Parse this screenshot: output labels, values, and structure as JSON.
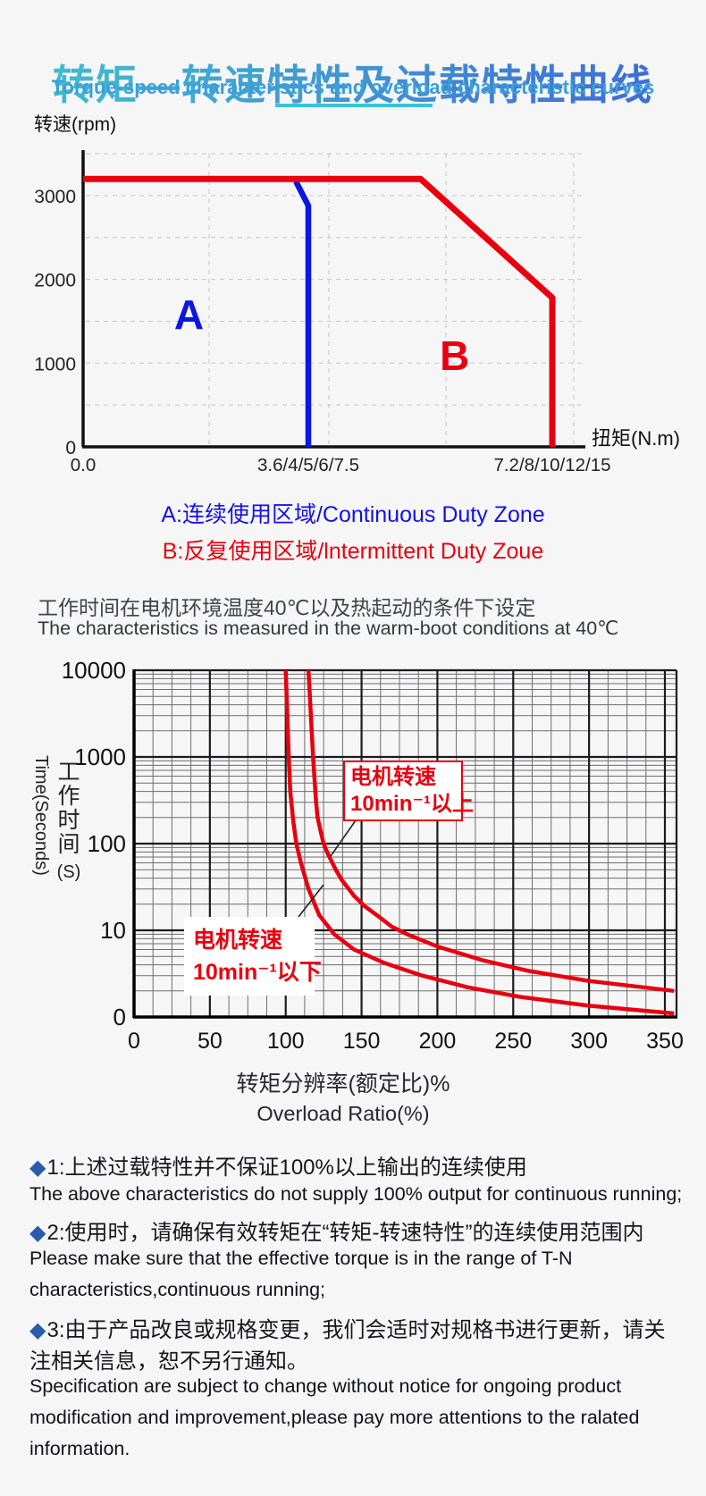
{
  "page": {
    "background": "#f6f6f7",
    "accent_red": "#e8000f",
    "accent_blue": "#0b16e0",
    "bullet_blue": "#2a5da9",
    "title_gradient": [
      "#41c3cd",
      "#3f66d6"
    ],
    "subtitle_color": "#3b9fd9",
    "underline_color": "#3cc3d6"
  },
  "header": {
    "title_cn": "转矩—转速特性及过载特性曲线",
    "title_en": "Torque-speed characteristics and overload characteristic curves"
  },
  "legend": {
    "a": "A:连续使用区域/Continuous Duty Zone",
    "b": "B:反复使用区域/lntermittent Duty Zoue"
  },
  "section_note": {
    "cn": "工作时间在电机环境温度40℃以及热起动的条件下设定",
    "en": "The characteristics is measured in the warm-boot conditions at 40℃"
  },
  "chart_data": [
    {
      "id": "torque-speed",
      "type": "line",
      "title": "",
      "xlabel": "扭矩(N.m)",
      "ylabel": "转速(rpm)",
      "x_ticks": [
        "0.0",
        "3.6/4/5/6/7.5",
        "7.2/8/10/12/15"
      ],
      "x_unit_note": "x expressed in multiples of rated torque; second tick = rated torque, third tick = 2x rated",
      "y_ticks": [
        0,
        1000,
        2000,
        3000
      ],
      "ylim": [
        0,
        3550
      ],
      "grid": "dashed",
      "zone_labels": [
        {
          "text": "A",
          "x": 0.47,
          "rpm": 1580,
          "color": "#0b16e0"
        },
        {
          "text": "B",
          "x": 1.6,
          "rpm": 1090,
          "color": "#e8000f"
        }
      ],
      "series": [
        {
          "name": "连续使用区域边界 Continuous duty boundary",
          "color": "#0b16e0",
          "width": 6.5,
          "points": [
            [
              0.945,
              3170
            ],
            [
              1.0,
              2880
            ],
            [
              1.0,
              0
            ]
          ]
        },
        {
          "name": "反复使用区域边界 Intermittent duty boundary",
          "color": "#e8000f",
          "width": 7,
          "points": [
            [
              0,
              3200
            ],
            [
              1.46,
              3200
            ],
            [
              2.0,
              1780
            ],
            [
              2.0,
              0
            ]
          ]
        }
      ]
    },
    {
      "id": "overload",
      "type": "line",
      "title": "",
      "xlabel_cn": "转矩分辨率(额定比)%",
      "xlabel_en": "Overload Ratio(%)",
      "ylabel_cn": "工作时间",
      "ylabel_cn_unit": "(S)",
      "ylabel_en": "Time(Seconds)",
      "x_ticks": [
        0,
        50,
        100,
        150,
        200,
        250,
        300,
        350
      ],
      "xlim": [
        0,
        357
      ],
      "y_scale": "log",
      "y_ticks": [
        10000,
        1000,
        100,
        10,
        0
      ],
      "series": [
        {
          "name": "电机转速10min⁻¹以上",
          "color": "#e8000f",
          "width": 4.5,
          "points": [
            [
              115,
              10000
            ],
            [
              118,
              1000
            ],
            [
              120,
              300
            ],
            [
              121,
              200
            ],
            [
              123,
              140
            ],
            [
              125,
              100
            ],
            [
              128,
              75
            ],
            [
              133,
              50
            ],
            [
              137,
              38
            ],
            [
              145,
              25
            ],
            [
              152,
              19
            ],
            [
              160,
              15
            ],
            [
              170,
              11
            ],
            [
              180,
              9
            ],
            [
              200,
              6.5
            ],
            [
              230,
              4.5
            ],
            [
              260,
              3.4
            ],
            [
              300,
              2.6
            ],
            [
              356,
              2.0
            ]
          ]
        },
        {
          "name": "电机转速10min⁻¹以下",
          "color": "#e8000f",
          "width": 4.5,
          "points": [
            [
              100,
              10000
            ],
            [
              102,
              1000
            ],
            [
              103,
              400
            ],
            [
              105,
              180
            ],
            [
              107,
              100
            ],
            [
              110,
              60
            ],
            [
              115,
              30
            ],
            [
              122,
              15
            ],
            [
              132,
              9
            ],
            [
              145,
              6
            ],
            [
              165,
              4.2
            ],
            [
              190,
              3.0
            ],
            [
              220,
              2.2
            ],
            [
              255,
              1.7
            ],
            [
              300,
              1.35
            ],
            [
              356,
              1.1
            ]
          ]
        }
      ],
      "callouts": [
        {
          "id": "high-speed",
          "line1": "电机转速",
          "line2": "10min⁻¹以上"
        },
        {
          "id": "low-speed",
          "line1": "电机转速",
          "line2": "10min⁻¹以下"
        }
      ]
    }
  ],
  "notes": [
    {
      "lang": "cn",
      "bullet": "◆",
      "text": "1:上述过载特性并不保证100%以上输出的连续使用"
    },
    {
      "lang": "en",
      "bullet": "",
      "text": "The above characteristics do not supply 100% output for continuous running;"
    },
    {
      "lang": "cn",
      "bullet": "◆",
      "text": "2:使用时，请确保有效转矩在“转矩-转速特性”的连续使用范围内"
    },
    {
      "lang": "en",
      "bullet": "",
      "text": "Please make sure that the effective torque is in the range of T-N"
    },
    {
      "lang": "en",
      "bullet": "",
      "text": "characteristics,continuous running;"
    },
    {
      "lang": "cn",
      "bullet": "◆",
      "text": "3:由于产品改良或规格变更，我们会适时对规格书进行更新，请关"
    },
    {
      "lang": "cn",
      "bullet": "",
      "text": "注相关信息，恕不另行通知。"
    },
    {
      "lang": "en",
      "bullet": "",
      "text": "Specification are subject to change without notice for ongoing product"
    },
    {
      "lang": "en",
      "bullet": "",
      "text": "modification and improvement,please pay more attentions to the ralated"
    },
    {
      "lang": "en",
      "bullet": "",
      "text": "information."
    }
  ]
}
